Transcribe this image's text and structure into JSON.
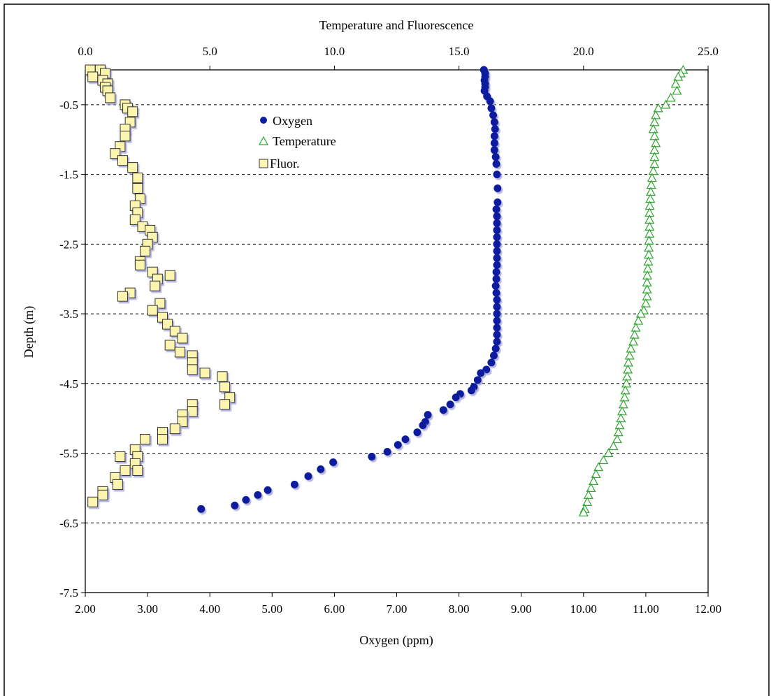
{
  "chart_data": {
    "type": "scatter",
    "title": "",
    "top_axis": {
      "label": "Temperature and Fluorescence",
      "range": [
        0,
        25
      ],
      "ticks": [
        0,
        5,
        10,
        15,
        20,
        25
      ],
      "tick_labels": [
        "0.0",
        "5.0",
        "10.0",
        "15.0",
        "20.0",
        "25.0"
      ]
    },
    "bottom_axis": {
      "label": "Oxygen (ppm)",
      "range": [
        2,
        12
      ],
      "ticks": [
        2,
        3,
        4,
        5,
        6,
        7,
        8,
        9,
        10,
        11,
        12
      ],
      "tick_labels": [
        "2.00",
        "3.00",
        "4.00",
        "5.00",
        "6.00",
        "7.00",
        "8.00",
        "9.00",
        "10.00",
        "11.00",
        "12.00"
      ]
    },
    "y_axis": {
      "label": "Depth (m)",
      "range": [
        -7.5,
        0
      ],
      "ticks": [
        -0.5,
        -1.5,
        -2.5,
        -3.5,
        -4.5,
        -5.5,
        -6.5,
        -7.5
      ],
      "tick_labels": [
        "-0.5",
        "-1.5",
        "-2.5",
        "-3.5",
        "-4.5",
        "-5.5",
        "-6.5",
        "-7.5"
      ]
    },
    "grid": "dashed horizontal lines at y ticks",
    "legend_position": "upper-left inside plot",
    "series": [
      {
        "name": "Oxygen",
        "axis": "bottom",
        "marker": "circle",
        "color": "#0a1f9e",
        "points": [
          [
            8.4,
            0.0
          ],
          [
            8.42,
            -0.05
          ],
          [
            8.42,
            -0.1
          ],
          [
            8.41,
            -0.15
          ],
          [
            8.42,
            -0.2
          ],
          [
            8.42,
            -0.25
          ],
          [
            8.41,
            -0.3
          ],
          [
            8.45,
            -0.38
          ],
          [
            8.5,
            -0.45
          ],
          [
            8.52,
            -0.55
          ],
          [
            8.55,
            -0.65
          ],
          [
            8.57,
            -0.75
          ],
          [
            8.58,
            -0.85
          ],
          [
            8.57,
            -0.95
          ],
          [
            8.57,
            -1.05
          ],
          [
            8.57,
            -1.15
          ],
          [
            8.59,
            -1.25
          ],
          [
            8.6,
            -1.35
          ],
          [
            8.61,
            -1.5
          ],
          [
            8.62,
            -1.7
          ],
          [
            8.62,
            -1.9
          ],
          [
            8.6,
            -2.0
          ],
          [
            8.61,
            -2.1
          ],
          [
            8.61,
            -2.2
          ],
          [
            8.61,
            -2.3
          ],
          [
            8.61,
            -2.4
          ],
          [
            8.61,
            -2.5
          ],
          [
            8.61,
            -2.6
          ],
          [
            8.61,
            -2.7
          ],
          [
            8.61,
            -2.8
          ],
          [
            8.6,
            -2.9
          ],
          [
            8.6,
            -3.0
          ],
          [
            8.59,
            -3.1
          ],
          [
            8.6,
            -3.2
          ],
          [
            8.61,
            -3.3
          ],
          [
            8.61,
            -3.4
          ],
          [
            8.61,
            -3.5
          ],
          [
            8.61,
            -3.6
          ],
          [
            8.61,
            -3.7
          ],
          [
            8.61,
            -3.8
          ],
          [
            8.61,
            -3.9
          ],
          [
            8.59,
            -4.0
          ],
          [
            8.56,
            -4.1
          ],
          [
            8.52,
            -4.2
          ],
          [
            8.44,
            -4.3
          ],
          [
            8.35,
            -4.35
          ],
          [
            8.3,
            -4.45
          ],
          [
            8.24,
            -4.55
          ],
          [
            8.2,
            -4.6
          ],
          [
            8.02,
            -4.65
          ],
          [
            7.95,
            -4.7
          ],
          [
            7.86,
            -4.8
          ],
          [
            7.75,
            -4.88
          ],
          [
            7.5,
            -4.95
          ],
          [
            7.46,
            -5.05
          ],
          [
            7.42,
            -5.1
          ],
          [
            7.33,
            -5.2
          ],
          [
            7.14,
            -5.3
          ],
          [
            7.02,
            -5.38
          ],
          [
            6.85,
            -5.48
          ],
          [
            6.6,
            -5.55
          ],
          [
            5.98,
            -5.63
          ],
          [
            5.78,
            -5.73
          ],
          [
            5.58,
            -5.83
          ],
          [
            5.36,
            -5.95
          ],
          [
            4.93,
            -6.03
          ],
          [
            4.77,
            -6.1
          ],
          [
            4.58,
            -6.17
          ],
          [
            4.4,
            -6.25
          ],
          [
            3.86,
            -6.3
          ]
        ]
      },
      {
        "name": "Temperature",
        "axis": "top",
        "marker": "triangle",
        "color": "#2ea52e",
        "points": [
          [
            24.0,
            0.0
          ],
          [
            23.9,
            -0.05
          ],
          [
            23.8,
            -0.1
          ],
          [
            23.7,
            -0.2
          ],
          [
            23.75,
            -0.3
          ],
          [
            23.5,
            -0.4
          ],
          [
            23.3,
            -0.5
          ],
          [
            23.0,
            -0.55
          ],
          [
            22.9,
            -0.65
          ],
          [
            22.85,
            -0.75
          ],
          [
            22.8,
            -0.85
          ],
          [
            22.85,
            -0.95
          ],
          [
            22.9,
            -1.05
          ],
          [
            22.85,
            -1.15
          ],
          [
            22.85,
            -1.25
          ],
          [
            22.85,
            -1.35
          ],
          [
            22.8,
            -1.45
          ],
          [
            22.75,
            -1.55
          ],
          [
            22.72,
            -1.65
          ],
          [
            22.7,
            -1.75
          ],
          [
            22.68,
            -1.85
          ],
          [
            22.66,
            -1.95
          ],
          [
            22.65,
            -2.05
          ],
          [
            22.65,
            -2.15
          ],
          [
            22.65,
            -2.25
          ],
          [
            22.65,
            -2.35
          ],
          [
            22.63,
            -2.45
          ],
          [
            22.62,
            -2.55
          ],
          [
            22.62,
            -2.65
          ],
          [
            22.6,
            -2.75
          ],
          [
            22.58,
            -2.85
          ],
          [
            22.56,
            -2.95
          ],
          [
            22.55,
            -3.05
          ],
          [
            22.55,
            -3.15
          ],
          [
            22.55,
            -3.25
          ],
          [
            22.5,
            -3.35
          ],
          [
            22.42,
            -3.45
          ],
          [
            22.3,
            -3.5
          ],
          [
            22.2,
            -3.6
          ],
          [
            22.1,
            -3.7
          ],
          [
            22.05,
            -3.8
          ],
          [
            22.0,
            -3.9
          ],
          [
            21.9,
            -4.0
          ],
          [
            21.85,
            -4.1
          ],
          [
            21.8,
            -4.2
          ],
          [
            21.78,
            -4.3
          ],
          [
            21.75,
            -4.4
          ],
          [
            21.72,
            -4.5
          ],
          [
            21.68,
            -4.6
          ],
          [
            21.65,
            -4.7
          ],
          [
            21.6,
            -4.8
          ],
          [
            21.55,
            -4.9
          ],
          [
            21.5,
            -5.0
          ],
          [
            21.45,
            -5.1
          ],
          [
            21.4,
            -5.2
          ],
          [
            21.35,
            -5.3
          ],
          [
            21.2,
            -5.4
          ],
          [
            21.0,
            -5.5
          ],
          [
            20.8,
            -5.6
          ],
          [
            20.6,
            -5.7
          ],
          [
            20.5,
            -5.8
          ],
          [
            20.4,
            -5.9
          ],
          [
            20.3,
            -6.0
          ],
          [
            20.2,
            -6.1
          ],
          [
            20.15,
            -6.2
          ],
          [
            20.05,
            -6.3
          ],
          [
            20.0,
            -6.35
          ]
        ]
      },
      {
        "name": "Fluor.",
        "axis": "top",
        "marker": "square",
        "color": "#fbf5b0",
        "points": [
          [
            0.2,
            0.0
          ],
          [
            0.6,
            0.0
          ],
          [
            0.8,
            -0.05
          ],
          [
            0.3,
            -0.1
          ],
          [
            0.7,
            -0.15
          ],
          [
            0.9,
            -0.2
          ],
          [
            0.8,
            -0.25
          ],
          [
            0.9,
            -0.3
          ],
          [
            1.0,
            -0.4
          ],
          [
            1.6,
            -0.5
          ],
          [
            1.7,
            -0.55
          ],
          [
            1.9,
            -0.6
          ],
          [
            1.8,
            -0.75
          ],
          [
            1.6,
            -0.85
          ],
          [
            1.6,
            -0.95
          ],
          [
            1.4,
            -1.1
          ],
          [
            1.2,
            -1.2
          ],
          [
            1.5,
            -1.3
          ],
          [
            1.9,
            -1.4
          ],
          [
            2.1,
            -1.55
          ],
          [
            2.1,
            -1.7
          ],
          [
            2.2,
            -1.85
          ],
          [
            2.0,
            -1.95
          ],
          [
            2.1,
            -2.05
          ],
          [
            2.0,
            -2.15
          ],
          [
            2.3,
            -2.25
          ],
          [
            2.6,
            -2.3
          ],
          [
            2.7,
            -2.4
          ],
          [
            2.5,
            -2.5
          ],
          [
            2.4,
            -2.6
          ],
          [
            2.2,
            -2.75
          ],
          [
            2.2,
            -2.8
          ],
          [
            2.7,
            -2.9
          ],
          [
            3.4,
            -2.95
          ],
          [
            2.9,
            -3.0
          ],
          [
            2.8,
            -3.1
          ],
          [
            1.8,
            -3.2
          ],
          [
            1.5,
            -3.25
          ],
          [
            3.0,
            -3.35
          ],
          [
            2.7,
            -3.45
          ],
          [
            3.1,
            -3.55
          ],
          [
            3.3,
            -3.65
          ],
          [
            3.6,
            -3.75
          ],
          [
            3.9,
            -3.85
          ],
          [
            3.4,
            -3.95
          ],
          [
            3.8,
            -4.05
          ],
          [
            4.3,
            -4.1
          ],
          [
            4.3,
            -4.2
          ],
          [
            4.3,
            -4.3
          ],
          [
            4.8,
            -4.35
          ],
          [
            5.5,
            -4.4
          ],
          [
            5.6,
            -4.55
          ],
          [
            5.8,
            -4.7
          ],
          [
            5.6,
            -4.8
          ],
          [
            4.3,
            -4.8
          ],
          [
            4.3,
            -4.9
          ],
          [
            3.9,
            -4.95
          ],
          [
            3.9,
            -5.05
          ],
          [
            3.6,
            -5.15
          ],
          [
            3.1,
            -5.2
          ],
          [
            3.1,
            -5.3
          ],
          [
            2.4,
            -5.3
          ],
          [
            2.0,
            -5.45
          ],
          [
            2.1,
            -5.55
          ],
          [
            1.4,
            -5.55
          ],
          [
            2.0,
            -5.65
          ],
          [
            1.6,
            -5.75
          ],
          [
            2.1,
            -5.75
          ],
          [
            1.2,
            -5.85
          ],
          [
            1.3,
            -5.95
          ],
          [
            0.7,
            -6.05
          ],
          [
            0.7,
            -6.1
          ],
          [
            0.3,
            -6.2
          ]
        ]
      }
    ]
  }
}
